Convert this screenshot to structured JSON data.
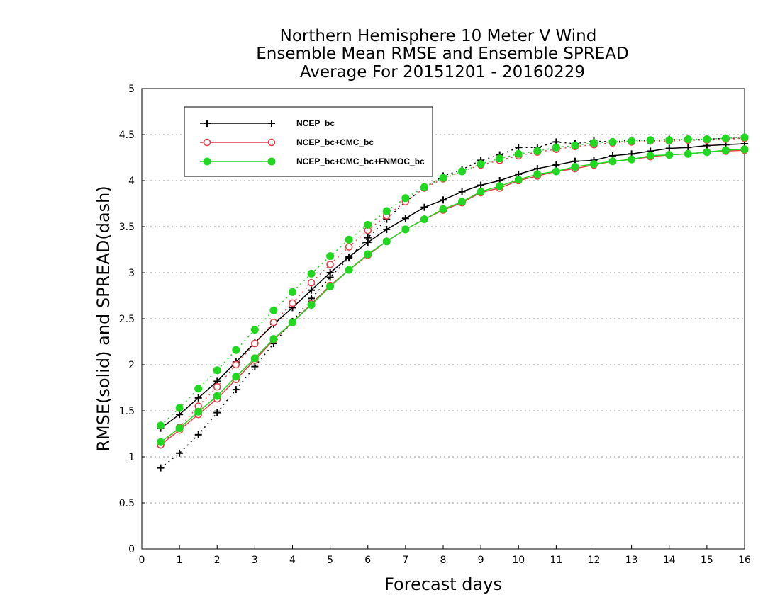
{
  "chart_data": {
    "type": "line",
    "title": [
      "Northern Hemisphere 10 Meter V Wind",
      "Ensemble Mean RMSE and Ensemble SPREAD",
      "Average For 20151201 - 20160229"
    ],
    "xlabel": "Forecast days",
    "ylabel": "RMSE(solid) and SPREAD(dash)",
    "xlim": [
      0,
      16
    ],
    "ylim": [
      0,
      5
    ],
    "x_ticks": [
      "0",
      "1",
      "2",
      "3",
      "4",
      "5",
      "6",
      "7",
      "8",
      "9",
      "10",
      "11",
      "12",
      "13",
      "14",
      "15",
      "16"
    ],
    "y_ticks": [
      "0",
      "0.5",
      "1",
      "1.5",
      "2",
      "2.5",
      "3",
      "3.5",
      "4",
      "4.5",
      "5"
    ],
    "grid": "horizontal dotted",
    "legend_position": "top-left",
    "x": [
      0.5,
      1,
      1.5,
      2,
      2.5,
      3,
      3.5,
      4,
      4.5,
      5,
      5.5,
      6,
      6.5,
      7,
      7.5,
      8,
      8.5,
      9,
      9.5,
      10,
      10.5,
      11,
      11.5,
      12,
      12.5,
      13,
      13.5,
      14,
      14.5,
      15,
      15.5,
      16
    ],
    "series": [
      {
        "name": "NCEP_bc",
        "color": "#000000",
        "marker": "plus",
        "rmse": [
          1.31,
          1.46,
          1.64,
          1.82,
          2.03,
          2.24,
          2.44,
          2.62,
          2.81,
          3.0,
          3.17,
          3.33,
          3.47,
          3.59,
          3.71,
          3.79,
          3.88,
          3.95,
          4.0,
          4.07,
          4.13,
          4.17,
          4.21,
          4.22,
          4.27,
          4.29,
          4.32,
          4.35,
          4.36,
          4.38,
          4.39,
          4.4
        ],
        "spread": [
          0.88,
          1.04,
          1.24,
          1.48,
          1.73,
          1.98,
          2.23,
          2.47,
          2.72,
          2.95,
          3.16,
          3.38,
          3.58,
          3.77,
          3.92,
          4.05,
          4.12,
          4.22,
          4.28,
          4.36,
          4.36,
          4.42,
          4.4,
          4.43,
          4.42,
          4.44,
          4.43,
          4.45,
          4.44,
          4.45,
          4.46,
          4.46
        ]
      },
      {
        "name": "NCEP_bc+CMC_bc",
        "color": "#e8404a",
        "marker": "open-circle",
        "rmse": [
          1.13,
          1.29,
          1.46,
          1.63,
          1.84,
          2.05,
          2.27,
          2.46,
          2.66,
          2.86,
          3.03,
          3.19,
          3.34,
          3.47,
          3.58,
          3.68,
          3.76,
          3.87,
          3.92,
          4.0,
          4.05,
          4.1,
          4.13,
          4.17,
          4.21,
          4.23,
          4.26,
          4.28,
          4.29,
          4.31,
          4.32,
          4.33
        ],
        "spread": [
          1.13,
          1.32,
          1.55,
          1.76,
          2.0,
          2.23,
          2.46,
          2.67,
          2.89,
          3.09,
          3.28,
          3.46,
          3.62,
          3.77,
          3.92,
          4.02,
          4.1,
          4.17,
          4.22,
          4.27,
          4.31,
          4.34,
          4.37,
          4.39,
          4.41,
          4.42,
          4.43,
          4.43,
          4.44,
          4.44,
          4.45,
          4.46
        ]
      },
      {
        "name": "NCEP_bc+CMC_bc+FNMOC_bc",
        "color": "#1fd81f",
        "marker": "filled-circle",
        "rmse": [
          1.16,
          1.31,
          1.49,
          1.66,
          1.87,
          2.07,
          2.28,
          2.46,
          2.65,
          2.85,
          3.03,
          3.2,
          3.34,
          3.47,
          3.58,
          3.69,
          3.77,
          3.88,
          3.94,
          4.01,
          4.07,
          4.1,
          4.15,
          4.18,
          4.21,
          4.23,
          4.27,
          4.28,
          4.29,
          4.31,
          4.33,
          4.34
        ],
        "spread": [
          1.34,
          1.53,
          1.74,
          1.94,
          2.16,
          2.38,
          2.59,
          2.79,
          2.99,
          3.18,
          3.36,
          3.52,
          3.67,
          3.81,
          3.93,
          4.03,
          4.1,
          4.18,
          4.24,
          4.29,
          4.32,
          4.36,
          4.38,
          4.41,
          4.42,
          4.43,
          4.44,
          4.44,
          4.45,
          4.45,
          4.46,
          4.47
        ]
      }
    ]
  }
}
